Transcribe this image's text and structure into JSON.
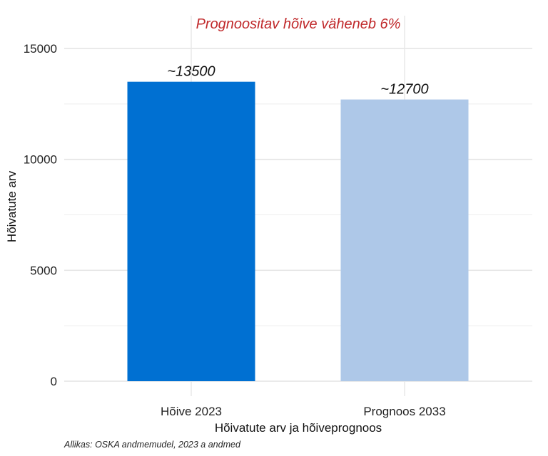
{
  "chart_data": {
    "type": "bar",
    "categories": [
      "Hõive 2023",
      "Prognoos 2033"
    ],
    "values": [
      13500,
      12700
    ],
    "data_labels": [
      "~13500",
      "~12700"
    ],
    "colors": [
      "#0070d2",
      "#aec8e8"
    ],
    "annotation": "Prognoositav hõive väheneb 6%",
    "annotation_color": "#c0292b",
    "xlabel": "Hõivatute arv ja hõiveprognoos",
    "ylabel": "Hõivatute arv",
    "ylim": [
      0,
      15500
    ],
    "yticks": [
      0,
      5000,
      10000,
      15000
    ],
    "grid": true,
    "legend": "none"
  },
  "caption": "Allikas: OSKA andmemudel, 2023 a andmed"
}
